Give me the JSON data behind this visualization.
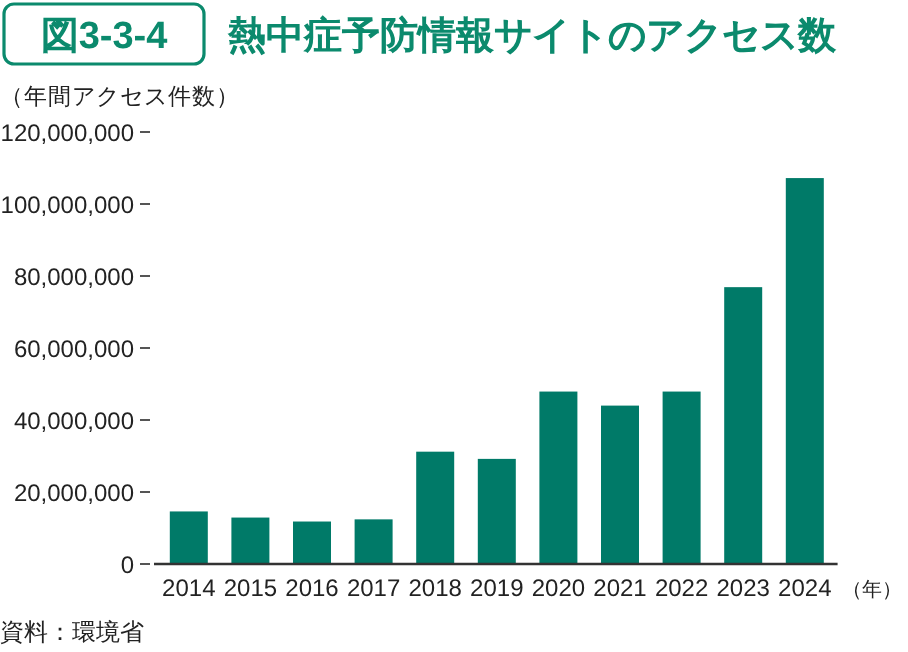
{
  "chart_data": {
    "type": "bar",
    "title": "熱中症予防情報サイトのアクセス数",
    "ylabel": "（年間アクセス件数）",
    "xlabel": "（年）",
    "annotations": [
      "図3-3-4",
      "資料：環境省"
    ],
    "categories": [
      "2014",
      "2015",
      "2016",
      "2017",
      "2018",
      "2019",
      "2020",
      "2021",
      "2022",
      "2023",
      "2024"
    ],
    "values": [
      14600000,
      12900000,
      11800000,
      12400000,
      31200000,
      29200000,
      47900000,
      44000000,
      47900000,
      76900000,
      107200000
    ],
    "color": "#007a68",
    "ylim": [
      0,
      120000000
    ],
    "yticks": [
      {
        "value": 0,
        "label": "0"
      },
      {
        "value": 20000000,
        "label": "20,000,000"
      },
      {
        "value": 40000000,
        "label": "40,000,000"
      },
      {
        "value": 60000000,
        "label": "60,000,000"
      },
      {
        "value": 80000000,
        "label": "80,000,000"
      },
      {
        "value": 100000000,
        "label": "100,000,000"
      },
      {
        "value": 120000000,
        "label": "120,000,000"
      }
    ],
    "grid": false,
    "legend": false
  }
}
